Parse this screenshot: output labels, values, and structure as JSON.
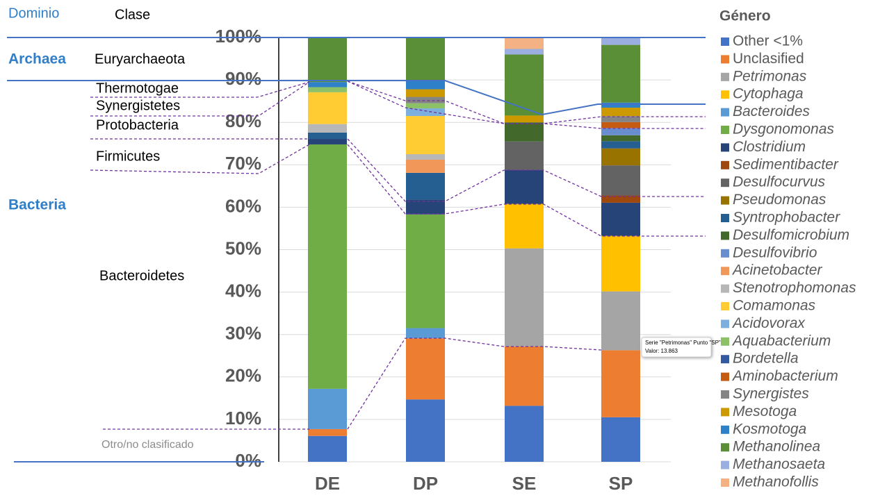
{
  "chart_data": {
    "type": "stacked_bar",
    "categories": [
      "DE",
      "DP",
      "SE",
      "SP"
    ],
    "ylim": [
      0,
      100
    ],
    "yticks": [
      {
        "value": 0,
        "label": "0%"
      },
      {
        "value": 10,
        "label": "10%"
      },
      {
        "value": 20,
        "label": "20%"
      },
      {
        "value": 30,
        "label": "30%"
      },
      {
        "value": 40,
        "label": "40%"
      },
      {
        "value": 50,
        "label": "50%"
      },
      {
        "value": 60,
        "label": "60%"
      },
      {
        "value": 70,
        "label": "70%"
      },
      {
        "value": 80,
        "label": "80%"
      },
      {
        "value": 90,
        "label": "90%"
      },
      {
        "value": 100,
        "label": "100%"
      }
    ],
    "grid": true,
    "legend_title": "Género",
    "series": [
      {
        "name": "Other <1%",
        "color": "#4472c4",
        "values": [
          6.1,
          14.7,
          13.2,
          10.5
        ]
      },
      {
        "name": "Unclasified",
        "color": "#ed7d31",
        "values": [
          1.6,
          14.4,
          14.0,
          15.8
        ]
      },
      {
        "name": "Petrimonas",
        "color": "#a5a5a5",
        "values": [
          0,
          0,
          23.1,
          13.863
        ]
      },
      {
        "name": "Cytophaga",
        "color": "#ffc000",
        "values": [
          0,
          0,
          10.5,
          13.1
        ]
      },
      {
        "name": "Bacteroides",
        "color": "#5b9bd5",
        "values": [
          9.5,
          2.4,
          0,
          0
        ]
      },
      {
        "name": "Dysgonomonas",
        "color": "#70ad47",
        "values": [
          57.6,
          26.8,
          0,
          0
        ]
      },
      {
        "name": "Clostridium",
        "color": "#264478",
        "values": [
          1.3,
          3.5,
          8.0,
          7.8
        ]
      },
      {
        "name": "Sedimentibacter",
        "color": "#9e480e",
        "values": [
          0,
          0,
          0,
          1.7
        ]
      },
      {
        "name": "Desulfocurvus",
        "color": "#636363",
        "values": [
          0,
          0,
          6.7,
          7.1
        ]
      },
      {
        "name": "Pseudomonas",
        "color": "#997300",
        "values": [
          0,
          0,
          0,
          4.0
        ]
      },
      {
        "name": "Syntrophobacter",
        "color": "#255e91",
        "values": [
          1.5,
          6.3,
          0,
          1.7
        ]
      },
      {
        "name": "Desulfomicrobium",
        "color": "#43682b",
        "values": [
          0,
          0,
          4.5,
          1.4
        ]
      },
      {
        "name": "Desulfovibrio",
        "color": "#698ed0",
        "values": [
          0,
          0,
          0,
          1.7
        ]
      },
      {
        "name": "Acinetobacter",
        "color": "#f1975a",
        "values": [
          0,
          3.1,
          0,
          0
        ]
      },
      {
        "name": "Stenotrophomonas",
        "color": "#b7b7b7",
        "values": [
          2.0,
          1.3,
          0,
          0
        ]
      },
      {
        "name": "Comamonas",
        "color": "#ffcd33",
        "values": [
          7.5,
          9.0,
          0,
          0
        ]
      },
      {
        "name": "Acidovorax",
        "color": "#7cafdd",
        "values": [
          0,
          1.8,
          0,
          0
        ]
      },
      {
        "name": "Aquabacterium",
        "color": "#8cc168",
        "values": [
          1.2,
          1.2,
          0,
          0
        ]
      },
      {
        "name": "Bordetella",
        "color": "#335aa1",
        "values": [
          0,
          0,
          0,
          0
        ]
      },
      {
        "name": "Aminobacterium",
        "color": "#c55a11",
        "values": [
          0,
          0,
          0,
          1.4
        ]
      },
      {
        "name": "Synergistes",
        "color": "#848484",
        "values": [
          0,
          1.5,
          0,
          1.4
        ]
      },
      {
        "name": "Mesotoga",
        "color": "#cc9a00",
        "values": [
          0,
          1.8,
          1.6,
          2.0
        ]
      },
      {
        "name": "Kosmotoga",
        "color": "#2e80c8",
        "values": [
          1.2,
          2.2,
          0,
          1.2
        ]
      },
      {
        "name": "Methanolinea",
        "color": "#5b8f37",
        "values": [
          10.5,
          10.0,
          14.4,
          13.6
        ]
      },
      {
        "name": "Methanosaeta",
        "color": "#9aafe0",
        "values": [
          0,
          0,
          1.3,
          1.7
        ]
      },
      {
        "name": "Methanofollis",
        "color": "#f4b183",
        "values": [
          0,
          0,
          2.7,
          0
        ]
      }
    ],
    "annotations": {
      "dominio": "Dominio",
      "clase": "Clase",
      "archaea": "Archaea",
      "bacteria": "Bacteria",
      "euryarchaeota": "Euryarchaeota",
      "thermotogae": "Thermotogae",
      "synergistetes": "Synergistetes",
      "protobacteria": "Protobacteria",
      "firmicutes": "Firmicutes",
      "bacteroidetes": "Bacteroidetes",
      "otro": "Otro/no clasificado"
    },
    "tooltip": {
      "title": "Serie \"Petrimonas\" Punto \"SP\"",
      "value": "Valor: 13.863"
    }
  }
}
